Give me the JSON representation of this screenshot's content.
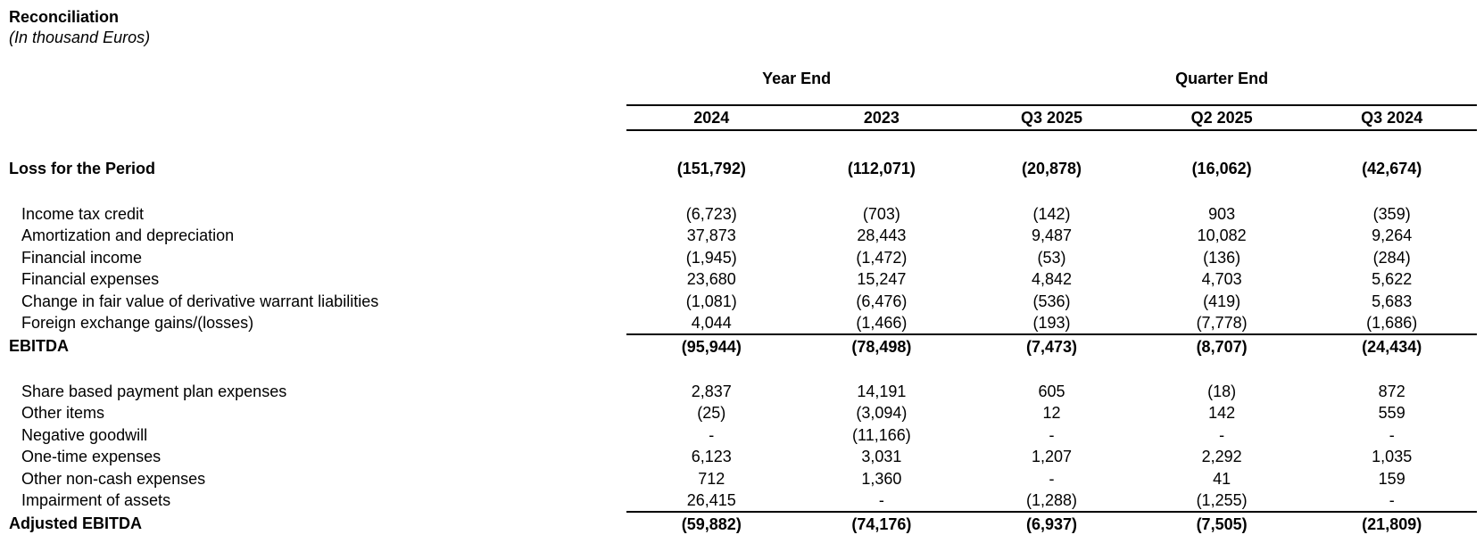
{
  "title": "Reconciliation",
  "subtitle": "(In thousand Euros)",
  "table": {
    "group_headers": [
      {
        "label": "Year End",
        "span": 2
      },
      {
        "label": "Quarter End",
        "span": 3
      }
    ],
    "columns": [
      "2024",
      "2023",
      "Q3 2025",
      "Q2 2025",
      "Q3 2024"
    ],
    "rows": [
      {
        "label": "Loss for the Period",
        "emphasis": true,
        "gap_after": true,
        "values": [
          "(151,792)",
          "(112,071)",
          "(20,878)",
          "(16,062)",
          "(42,674)"
        ]
      },
      {
        "label": "Income tax credit",
        "values": [
          "(6,723)",
          "(703)",
          "(142)",
          "903",
          "(359)"
        ]
      },
      {
        "label": "Amortization and depreciation",
        "values": [
          "37,873",
          "28,443",
          "9,487",
          "10,082",
          "9,264"
        ]
      },
      {
        "label": "Financial income",
        "values": [
          "(1,945)",
          "(1,472)",
          "(53)",
          "(136)",
          "(284)"
        ]
      },
      {
        "label": "Financial expenses",
        "values": [
          "23,680",
          "15,247",
          "4,842",
          "4,703",
          "5,622"
        ]
      },
      {
        "label": "Change in fair value of derivative warrant liabilities",
        "values": [
          "(1,081)",
          "(6,476)",
          "(536)",
          "(419)",
          "5,683"
        ]
      },
      {
        "label": "Foreign exchange gains/(losses)",
        "values": [
          "4,044",
          "(1,466)",
          "(193)",
          "(7,778)",
          "(1,686)"
        ]
      },
      {
        "label": "EBITDA",
        "emphasis": true,
        "separator_above": true,
        "gap_after": true,
        "values": [
          "(95,944)",
          "(78,498)",
          "(7,473)",
          "(8,707)",
          "(24,434)"
        ]
      },
      {
        "label": "Share based payment plan expenses",
        "values": [
          "2,837",
          "14,191",
          "605",
          "(18)",
          "872"
        ]
      },
      {
        "label": "Other items",
        "values": [
          "(25)",
          "(3,094)",
          "12",
          "142",
          "559"
        ]
      },
      {
        "label": "Negative goodwill",
        "values": [
          "-",
          "(11,166)",
          "-",
          "-",
          "-"
        ]
      },
      {
        "label": "One-time expenses",
        "values": [
          "6,123",
          "3,031",
          "1,207",
          "2,292",
          "1,035"
        ]
      },
      {
        "label": "Other non-cash expenses",
        "values": [
          "712",
          "1,360",
          "-",
          "41",
          "159"
        ]
      },
      {
        "label": "Impairment of assets",
        "values": [
          "26,415",
          "-",
          "(1,288)",
          "(1,255)",
          "-"
        ]
      },
      {
        "label": "Adjusted EBITDA",
        "emphasis": true,
        "separator_above": true,
        "values": [
          "(59,882)",
          "(74,176)",
          "(6,937)",
          "(7,505)",
          "(21,809)"
        ]
      }
    ]
  }
}
